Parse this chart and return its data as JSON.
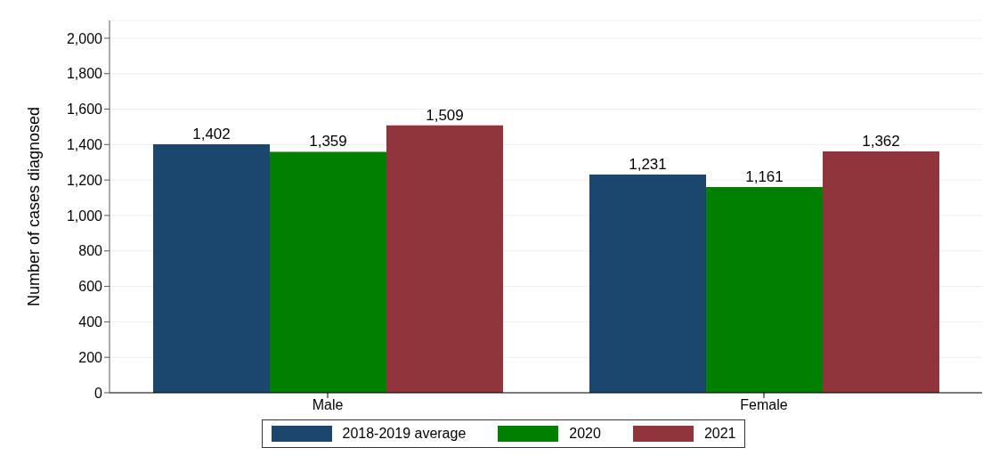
{
  "chart_data": {
    "type": "bar",
    "ylabel": "Number of cases diagnosed",
    "categories": [
      "Male",
      "Female"
    ],
    "series": [
      {
        "name": "2018-2019 average",
        "color": "#1b466e",
        "values": [
          1402,
          1231
        ],
        "value_labels": [
          "1,402",
          "1,231"
        ]
      },
      {
        "name": "2020",
        "color": "#007f00",
        "values": [
          1359,
          1161
        ],
        "value_labels": [
          "1,359",
          "1,161"
        ]
      },
      {
        "name": "2021",
        "color": "#90353b",
        "values": [
          1509,
          1362
        ],
        "value_labels": [
          "1,509",
          "1,362"
        ]
      }
    ],
    "ylim": [
      0,
      2100
    ],
    "yticks": [
      {
        "value": 0,
        "label": "0"
      },
      {
        "value": 200,
        "label": "200"
      },
      {
        "value": 400,
        "label": "400"
      },
      {
        "value": 600,
        "label": "600"
      },
      {
        "value": 800,
        "label": "800"
      },
      {
        "value": 1000,
        "label": "1,000"
      },
      {
        "value": 1200,
        "label": "1,200"
      },
      {
        "value": 1400,
        "label": "1,400"
      },
      {
        "value": 1600,
        "label": "1,600"
      },
      {
        "value": 1800,
        "label": "1,800"
      },
      {
        "value": 2000,
        "label": "2,000"
      }
    ],
    "grid": "y",
    "legend": "bottom"
  }
}
